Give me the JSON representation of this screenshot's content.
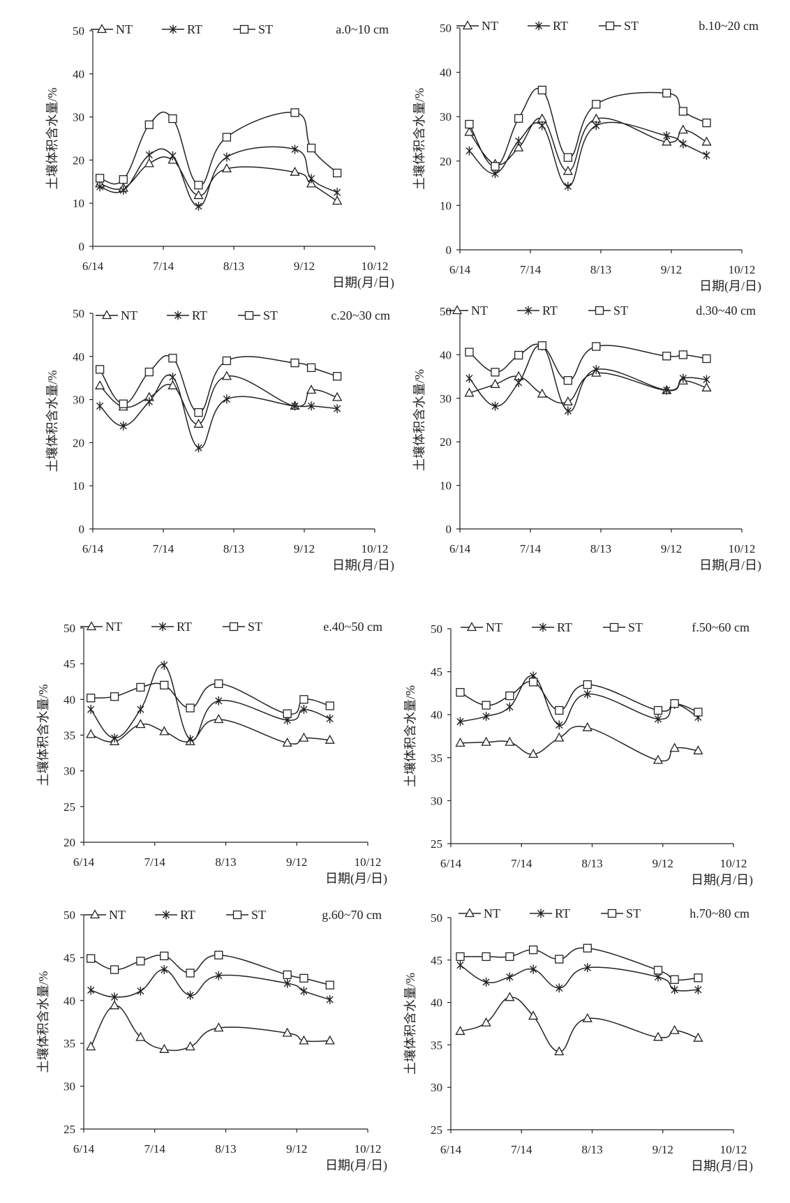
{
  "chart_data": [
    {
      "type": "line",
      "title": "a.0~10 cm",
      "xlabel": "日期(月/日)",
      "ylabel": "土壤体积含水量/%",
      "x_ticks": [
        "6/14",
        "7/14",
        "8/13",
        "9/12",
        "10/12"
      ],
      "ylim": [
        0,
        50
      ],
      "y_ticks": [
        0,
        10,
        20,
        30,
        40,
        50
      ],
      "x": [
        "6/17",
        "6/27",
        "7/8",
        "7/18",
        "7/29",
        "8/10",
        "9/8",
        "9/15",
        "9/26"
      ],
      "legend": "top",
      "series": [
        {
          "name": "NT",
          "marker": "triangle",
          "values": [
            14.5,
            13.5,
            19.2,
            20.0,
            11.8,
            18.0,
            17.2,
            14.5,
            10.5
          ]
        },
        {
          "name": "RT",
          "marker": "asterisk",
          "values": [
            13.8,
            13.0,
            21.2,
            21.0,
            9.3,
            20.7,
            22.5,
            15.7,
            12.5
          ]
        },
        {
          "name": "ST",
          "marker": "square",
          "values": [
            15.8,
            15.5,
            28.2,
            29.6,
            14.2,
            25.3,
            31.0,
            22.8,
            17.0
          ]
        }
      ]
    },
    {
      "type": "line",
      "title": "b.10~20 cm",
      "xlabel": "日期(月/日)",
      "ylabel": "土壤体积含水量/%",
      "x_ticks": [
        "6/14",
        "7/14",
        "8/13",
        "9/12",
        "10/12"
      ],
      "ylim": [
        0,
        50
      ],
      "y_ticks": [
        0,
        10,
        20,
        30,
        40,
        50
      ],
      "x": [
        "6/18",
        "6/29",
        "7/9",
        "7/19",
        "7/30",
        "8/11",
        "9/10",
        "9/17",
        "9/27"
      ],
      "legend": "top",
      "series": [
        {
          "name": "NT",
          "marker": "triangle",
          "values": [
            26.5,
            19.3,
            23.0,
            29.5,
            17.7,
            29.5,
            24.3,
            27.0,
            24.3
          ]
        },
        {
          "name": "RT",
          "marker": "asterisk",
          "values": [
            22.3,
            17.2,
            24.5,
            28.0,
            14.3,
            28.0,
            25.7,
            23.9,
            21.3
          ]
        },
        {
          "name": "ST",
          "marker": "square",
          "values": [
            28.3,
            18.8,
            29.6,
            36.0,
            20.8,
            32.8,
            35.3,
            31.2,
            28.6
          ]
        }
      ]
    },
    {
      "type": "line",
      "title": "c.20~30 cm",
      "xlabel": "日期(月/日)",
      "ylabel": "土壤体积含水量/%",
      "x_ticks": [
        "6/14",
        "7/14",
        "8/13",
        "9/12",
        "10/12"
      ],
      "ylim": [
        0,
        50
      ],
      "y_ticks": [
        0,
        10,
        20,
        30,
        40,
        50
      ],
      "x": [
        "6/17",
        "6/27",
        "7/8",
        "7/18",
        "7/29",
        "8/10",
        "9/8",
        "9/15",
        "9/26"
      ],
      "legend": "top",
      "series": [
        {
          "name": "NT",
          "marker": "triangle",
          "values": [
            33.2,
            28.3,
            30.5,
            33.2,
            24.3,
            35.4,
            28.5,
            32.2,
            30.5
          ]
        },
        {
          "name": "RT",
          "marker": "asterisk",
          "values": [
            28.5,
            23.9,
            29.5,
            35.2,
            18.8,
            30.1,
            28.5,
            28.5,
            27.9
          ]
        },
        {
          "name": "ST",
          "marker": "square",
          "values": [
            37.0,
            29.0,
            36.4,
            39.6,
            27.0,
            39.0,
            38.5,
            37.4,
            35.4
          ]
        }
      ]
    },
    {
      "type": "line",
      "title": "d.30~40 cm",
      "xlabel": "日期(月/日)",
      "ylabel": "土壤体积含水量/%",
      "x_ticks": [
        "6/14",
        "7/14",
        "8/13",
        "9/12",
        "10/12"
      ],
      "ylim": [
        0,
        50
      ],
      "y_ticks": [
        0,
        10,
        20,
        30,
        40,
        50
      ],
      "x": [
        "6/18",
        "6/29",
        "7/9",
        "7/19",
        "7/30",
        "8/11",
        "9/10",
        "9/17",
        "9/27"
      ],
      "legend": "top",
      "series": [
        {
          "name": "NT",
          "marker": "triangle",
          "values": [
            31.2,
            33.2,
            35.0,
            31.0,
            29.2,
            35.8,
            31.8,
            34.0,
            32.4
          ]
        },
        {
          "name": "RT",
          "marker": "asterisk",
          "values": [
            34.6,
            28.2,
            33.6,
            42.0,
            27.1,
            36.6,
            31.9,
            34.6,
            34.3
          ]
        },
        {
          "name": "ST",
          "marker": "square",
          "values": [
            40.6,
            36.0,
            39.9,
            42.1,
            34.1,
            41.9,
            39.7,
            40.0,
            39.1
          ]
        }
      ]
    },
    {
      "type": "line",
      "title": "e.40~50 cm",
      "xlabel": "日期(月/日)",
      "ylabel": "土壤体积含水量/%",
      "x_ticks": [
        "6/14",
        "7/14",
        "8/13",
        "9/12",
        "10/12"
      ],
      "ylim": [
        20,
        50
      ],
      "y_ticks": [
        20,
        25,
        30,
        35,
        40,
        45,
        50
      ],
      "x": [
        "6/17",
        "6/27",
        "7/8",
        "7/18",
        "7/29",
        "8/10",
        "9/8",
        "9/15",
        "9/26"
      ],
      "legend": "top",
      "series": [
        {
          "name": "NT",
          "marker": "triangle",
          "values": [
            35.1,
            34.1,
            36.5,
            35.5,
            34.1,
            37.2,
            33.9,
            34.6,
            34.3
          ]
        },
        {
          "name": "RT",
          "marker": "asterisk",
          "values": [
            38.6,
            34.6,
            38.6,
            44.8,
            34.4,
            39.8,
            37.1,
            38.6,
            37.3
          ]
        },
        {
          "name": "ST",
          "marker": "square",
          "values": [
            40.2,
            40.4,
            41.7,
            42.0,
            38.8,
            42.2,
            38.0,
            40.0,
            39.1
          ]
        }
      ]
    },
    {
      "type": "line",
      "title": "f.50~60 cm",
      "xlabel": "日期(月/日)",
      "ylabel": "土壤体积含水量/%",
      "x_ticks": [
        "6/14",
        "7/14",
        "8/13",
        "9/12",
        "10/12"
      ],
      "ylim": [
        25,
        50
      ],
      "y_ticks": [
        25,
        30,
        35,
        40,
        45,
        50
      ],
      "x": [
        "6/18",
        "6/29",
        "7/9",
        "7/19",
        "7/30",
        "8/11",
        "9/10",
        "9/17",
        "9/27"
      ],
      "legend": "top",
      "series": [
        {
          "name": "NT",
          "marker": "triangle",
          "values": [
            36.7,
            36.8,
            36.8,
            35.4,
            37.3,
            38.5,
            34.7,
            36.1,
            35.8
          ]
        },
        {
          "name": "RT",
          "marker": "asterisk",
          "values": [
            39.2,
            39.8,
            40.9,
            44.5,
            38.8,
            42.4,
            39.5,
            41.2,
            39.7
          ]
        },
        {
          "name": "ST",
          "marker": "square",
          "values": [
            42.6,
            41.1,
            42.2,
            43.8,
            40.5,
            43.5,
            40.5,
            41.3,
            40.3
          ]
        }
      ]
    },
    {
      "type": "line",
      "title": "g.60~70 cm",
      "xlabel": "日期(月/日)",
      "ylabel": "土壤体积含水量/%",
      "x_ticks": [
        "6/14",
        "7/14",
        "8/13",
        "9/12",
        "10/12"
      ],
      "ylim": [
        25,
        50
      ],
      "y_ticks": [
        25,
        30,
        35,
        40,
        45,
        50
      ],
      "x": [
        "6/17",
        "6/27",
        "7/8",
        "7/18",
        "7/29",
        "8/10",
        "9/8",
        "9/15",
        "9/26"
      ],
      "legend": "top",
      "series": [
        {
          "name": "NT",
          "marker": "triangle",
          "values": [
            34.6,
            39.4,
            35.7,
            34.3,
            34.6,
            36.8,
            36.2,
            35.3,
            35.3
          ]
        },
        {
          "name": "RT",
          "marker": "asterisk",
          "values": [
            41.2,
            40.4,
            41.1,
            43.6,
            40.6,
            42.9,
            42.0,
            41.1,
            40.1
          ]
        },
        {
          "name": "ST",
          "marker": "square",
          "values": [
            44.9,
            43.6,
            44.6,
            45.2,
            43.2,
            45.3,
            43.0,
            42.6,
            41.8
          ]
        }
      ]
    },
    {
      "type": "line",
      "title": "h.70~80 cm",
      "xlabel": "日期(月/日)",
      "ylabel": "土壤体积含水量/%",
      "x_ticks": [
        "6/14",
        "7/14",
        "8/13",
        "9/12",
        "10/12"
      ],
      "ylim": [
        25,
        50
      ],
      "y_ticks": [
        25,
        30,
        35,
        40,
        45,
        50
      ],
      "x": [
        "6/18",
        "6/29",
        "7/9",
        "7/19",
        "7/30",
        "8/11",
        "9/10",
        "9/17",
        "9/27"
      ],
      "legend": "top",
      "series": [
        {
          "name": "NT",
          "marker": "triangle",
          "values": [
            36.6,
            37.6,
            40.6,
            38.4,
            34.2,
            38.1,
            35.9,
            36.7,
            35.8
          ]
        },
        {
          "name": "RT",
          "marker": "asterisk",
          "values": [
            44.4,
            42.4,
            43.0,
            43.9,
            41.7,
            44.1,
            43.0,
            41.5,
            41.5
          ]
        },
        {
          "name": "ST",
          "marker": "square",
          "values": [
            45.4,
            45.4,
            45.4,
            46.2,
            45.1,
            46.4,
            43.8,
            42.7,
            42.9
          ]
        }
      ]
    }
  ]
}
